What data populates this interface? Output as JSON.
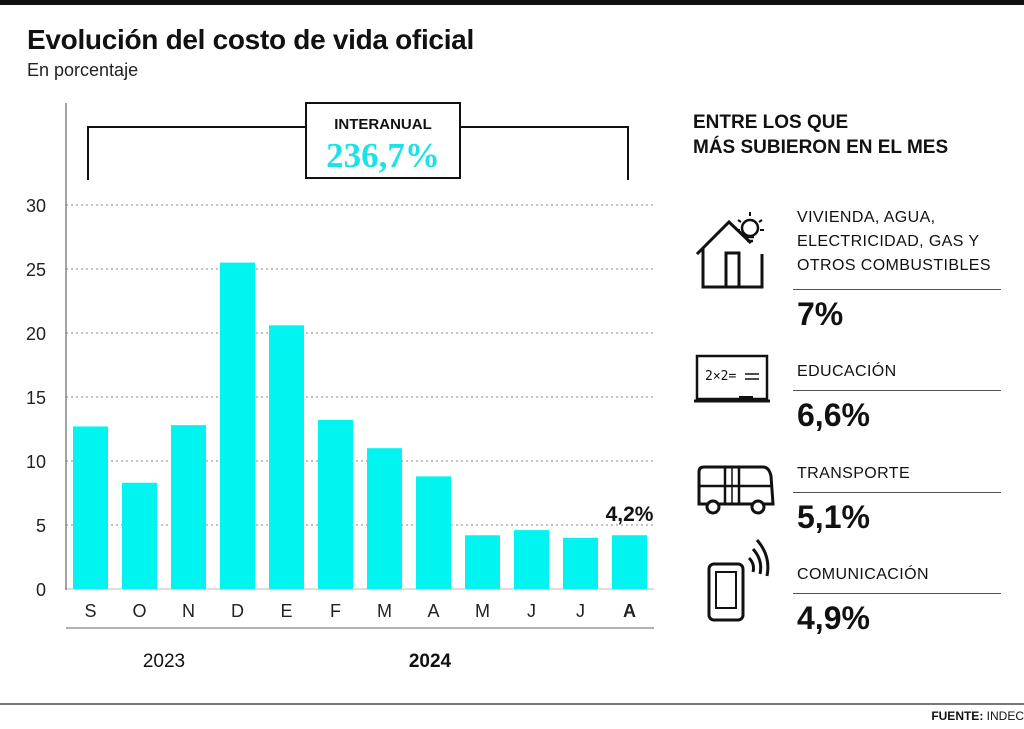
{
  "title": "Evolución del costo de vida oficial",
  "subtitle": "En porcentaje",
  "interanual": {
    "label": "INTERANUAL",
    "value": "236,7%"
  },
  "chart_data": {
    "type": "bar",
    "title": "Evolución del costo de vida oficial",
    "subtitle": "En porcentaje",
    "categories": [
      "S",
      "O",
      "N",
      "D",
      "E",
      "F",
      "M",
      "A",
      "M",
      "J",
      "J",
      "A"
    ],
    "values": [
      12.7,
      8.3,
      12.8,
      25.5,
      20.6,
      13.2,
      11.0,
      8.8,
      4.2,
      4.6,
      4.0,
      4.2
    ],
    "year_groups": [
      {
        "label": "2023",
        "from": 0,
        "to": 3,
        "bold": false
      },
      {
        "label": "2024",
        "from": 4,
        "to": 11,
        "bold": true
      }
    ],
    "yticks": [
      0,
      5,
      10,
      15,
      20,
      25,
      30
    ],
    "ylim": [
      0,
      30
    ],
    "grid": true,
    "annotation": {
      "index": 11,
      "text": "4,2%"
    },
    "bar_color": "#00f5f0"
  },
  "side": {
    "heading_line1": "ENTRE LOS QUE",
    "heading_line2": "MÁS SUBIERON EN EL MES",
    "categories": [
      {
        "icon": "house-bulb-icon",
        "label": "VIVIENDA, AGUA, ELECTRICIDAD, GAS Y OTROS COMBUSTIBLES",
        "value": "7%"
      },
      {
        "icon": "blackboard-icon",
        "label": "EDUCACIÓN",
        "value": "6,6%"
      },
      {
        "icon": "bus-icon",
        "label": "TRANSPORTE",
        "value": "5,1%"
      },
      {
        "icon": "phone-icon",
        "label": "COMUNICACIÓN",
        "value": "4,9%"
      }
    ]
  },
  "source": {
    "label": "FUENTE:",
    "value": "INDEC"
  },
  "colors": {
    "accent": "#00f5f0",
    "interanual_text": "#19e3e8",
    "text": "#111111",
    "grid": "#8a8a8a"
  }
}
